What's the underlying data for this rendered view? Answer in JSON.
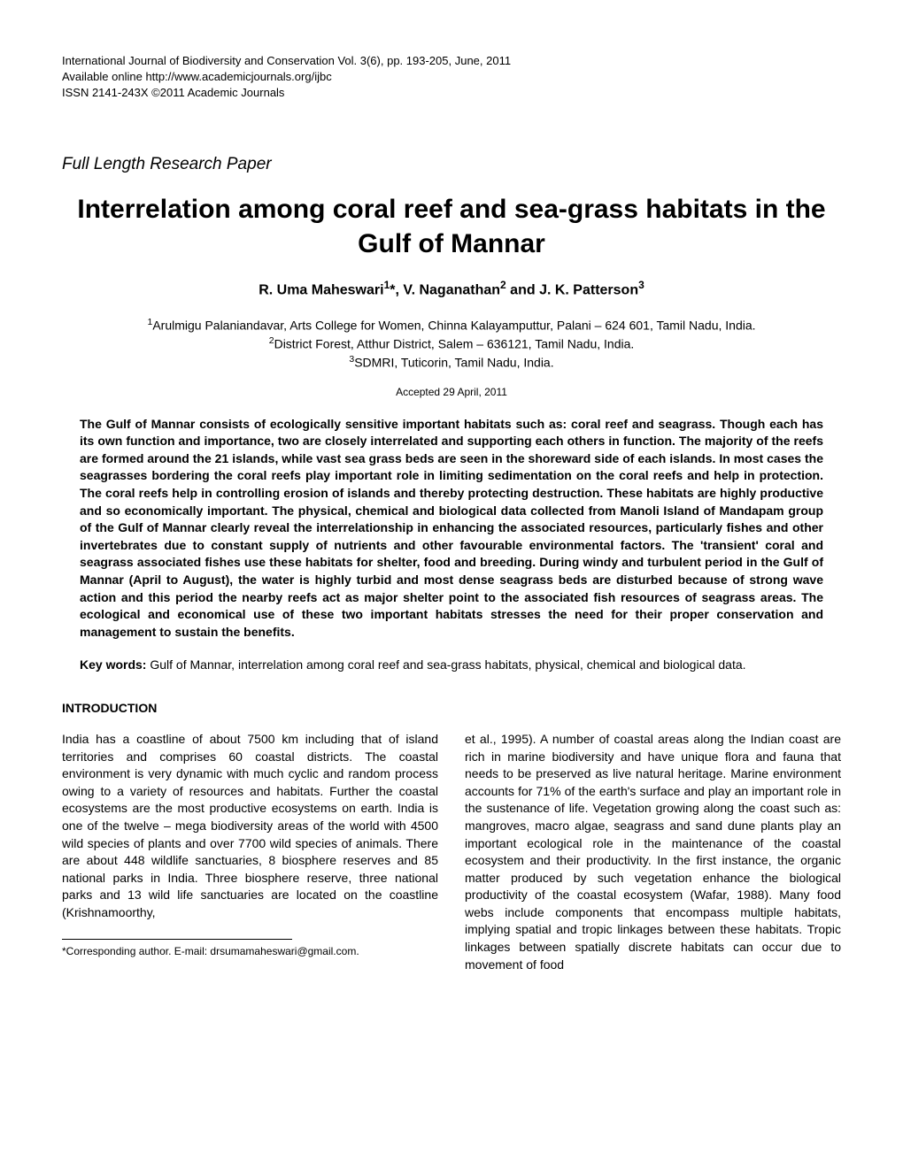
{
  "journal": {
    "line1": "International Journal of Biodiversity and Conservation Vol. 3(6), pp. 193-205, June, 2011",
    "line2": "Available online http://www.academicjournals.org/ijbc",
    "line3": "ISSN 2141-243X ©2011 Academic Journals"
  },
  "paper_type": "Full Length Research Paper",
  "title": "Interrelation among coral reef and sea-grass habitats in the Gulf of Mannar",
  "authors_html": "R. Uma Maheswari<sup>1</sup>*, V. Naganathan<sup>2</sup> and J. K. Patterson<sup>3</sup>",
  "affiliations": {
    "aff1": "<sup>1</sup>Arulmigu Palaniandavar, Arts College for Women, Chinna Kalayamputtur, Palani – 624 601, Tamil Nadu, India.",
    "aff2": "<sup>2</sup>District Forest, Atthur District, Salem – 636121, Tamil Nadu, India.",
    "aff3": "<sup>3</sup>SDMRI, Tuticorin, Tamil Nadu, India."
  },
  "accepted_date": "Accepted 29 April, 2011",
  "abstract": "The Gulf of Mannar consists of ecologically sensitive important habitats such as: coral reef and seagrass. Though each has its own function and importance, two are closely interrelated and supporting each others in function. The majority of the reefs are formed around the 21 islands, while vast sea grass beds are seen in the shoreward side of each islands. In most cases the seagrasses bordering the coral reefs play important role in limiting sedimentation on the coral reefs and help in protection. The coral reefs help in controlling erosion of islands and thereby protecting destruction. These habitats are highly productive and so economically important. The physical, chemical and biological data collected from Manoli Island of Mandapam group of the Gulf of Mannar clearly reveal the interrelationship in enhancing the associated resources, particularly fishes and other invertebrates due to constant supply of nutrients and other favourable environmental factors. The 'transient' coral and seagrass associated fishes use these habitats for shelter, food and breeding. During windy and turbulent period in the Gulf of Mannar (April to August), the water is highly turbid and most dense seagrass beds are disturbed because of strong wave action and this period the nearby reefs act as major shelter point to the associated fish resources of seagrass areas. The ecological and economical use of these two important habitats stresses the need for their proper conservation and management to sustain the benefits.",
  "keywords_label": "Key words:",
  "keywords_text": " Gulf of Mannar, interrelation among coral reef and sea-grass habitats, physical, chemical and biological data.",
  "introduction_heading": "INTRODUCTION",
  "body": {
    "col1": "India has a coastline of about 7500 km including that of island territories and comprises 60 coastal districts. The coastal environment is very dynamic with much cyclic and random process owing to a variety of resources and habitats. Further the coastal ecosystems are the most productive ecosystems on earth. India is one of the twelve – mega biodiversity areas of the world with 4500 wild species of plants and over 7700 wild species of animals. There are about 448 wildlife sanctuaries, 8 biosphere reserves and 85 national parks in India. Three biosphere reserve, three national parks and 13 wild life sanctuaries are located on the coastline (Krishnamoorthy,",
    "col2": "et al., 1995). A number of coastal areas along the Indian coast are rich in marine biodiversity and have unique flora and fauna that needs to be preserved as live natural heritage. Marine environment accounts for 71% of the earth's surface and play an important role in the sustenance of life. Vegetation growing along the coast such as: mangroves, macro algae, seagrass and sand dune plants play an important ecological role in the maintenance of the coastal ecosystem and their productivity. In the first instance, the organic matter produced by such vegetation enhance the biological productivity of the coastal ecosystem (Wafar, 1988). Many food webs include components that encompass multiple habitats, implying spatial and tropic linkages between these habitats. Tropic linkages between spatially discrete habitats can occur due to movement of food"
  },
  "footer": "*Corresponding author. E-mail: drsumamaheswari@gmail.com.",
  "colors": {
    "background": "#ffffff",
    "text": "#000000"
  },
  "typography": {
    "body_font_size": 14,
    "title_font_size": 30,
    "authors_font_size": 16,
    "journal_font_size": 13,
    "footer_font_size": 12
  }
}
